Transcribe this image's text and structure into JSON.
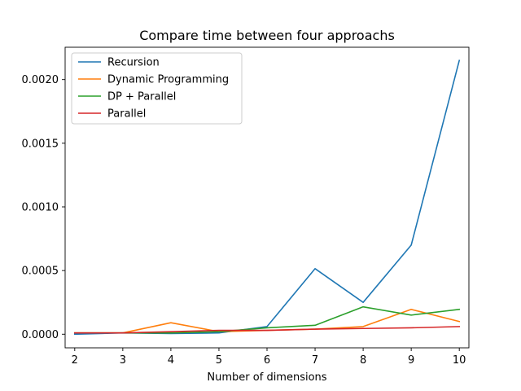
{
  "chart_data": {
    "type": "line",
    "title": "Compare time between four approachs",
    "xlabel": "Number of dimensions",
    "ylabel": "",
    "x": [
      2,
      3,
      4,
      5,
      6,
      7,
      8,
      9,
      10
    ],
    "xlim": [
      1.8,
      10.2
    ],
    "ylim": [
      -0.000107,
      0.002254
    ],
    "xticks": [
      "2",
      "3",
      "4",
      "5",
      "6",
      "7",
      "8",
      "9",
      "10"
    ],
    "yticks": [
      {
        "value": 0,
        "label": "0.0000"
      },
      {
        "value": 0.0005,
        "label": "0.0005"
      },
      {
        "value": 0.001,
        "label": "0.0010"
      },
      {
        "value": 0.0015,
        "label": "0.0015"
      },
      {
        "value": 0.002,
        "label": "0.0020"
      }
    ],
    "legend_position": "top-left",
    "grid": false,
    "series": [
      {
        "name": "Recursion",
        "color": "#1f77b4",
        "values": [
          0.0,
          1e-05,
          5e-06,
          1e-05,
          6e-05,
          0.000515,
          0.00025,
          0.0007,
          0.00215
        ]
      },
      {
        "name": "Dynamic Programming",
        "color": "#ff7f0e",
        "values": [
          1e-05,
          1e-05,
          9e-05,
          2e-05,
          3e-05,
          4e-05,
          6e-05,
          0.000195,
          0.0001
        ]
      },
      {
        "name": "DP + Parallel",
        "color": "#2ca02c",
        "values": [
          1e-05,
          1e-05,
          1e-05,
          2e-05,
          5e-05,
          7e-05,
          0.000215,
          0.00015,
          0.000195
        ]
      },
      {
        "name": "Parallel",
        "color": "#d62728",
        "values": [
          1e-05,
          1e-05,
          2e-05,
          3e-05,
          3e-05,
          4e-05,
          4.5e-05,
          5e-05,
          6e-05
        ]
      }
    ]
  }
}
